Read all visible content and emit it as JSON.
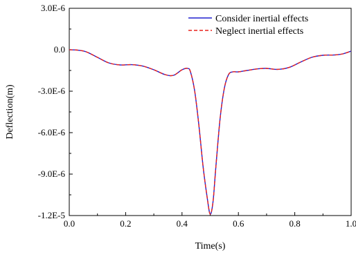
{
  "chart_data": {
    "type": "line",
    "xlabel": "Time(s)",
    "ylabel": "Deflection(m)",
    "xlim": [
      0.0,
      1.0
    ],
    "ylim": [
      -1.2e-05,
      3e-06
    ],
    "x_ticks": [
      "0.0",
      "0.2",
      "0.4",
      "0.6",
      "0.8",
      "1.0"
    ],
    "x_tick_values": [
      0.0,
      0.2,
      0.4,
      0.6,
      0.8,
      1.0
    ],
    "y_ticks": [
      "3.0E-6",
      "0.0",
      "-3.0E-6",
      "-6.0E-6",
      "-9.0E-6",
      "-1.2E-5"
    ],
    "y_tick_values": [
      3e-06,
      0.0,
      -3e-06,
      -6e-06,
      -9e-06,
      -1.2e-05
    ],
    "grid": false,
    "legend_position": "top-right",
    "x": [
      0.0,
      0.03,
      0.06,
      0.1,
      0.14,
      0.18,
      0.22,
      0.26,
      0.3,
      0.34,
      0.37,
      0.4,
      0.42,
      0.43,
      0.445,
      0.46,
      0.475,
      0.49,
      0.5,
      0.51,
      0.52,
      0.535,
      0.55,
      0.565,
      0.58,
      0.6,
      0.63,
      0.67,
      0.7,
      0.74,
      0.78,
      0.82,
      0.86,
      0.9,
      0.94,
      0.97,
      1.0
    ],
    "series": [
      {
        "name": "Consider inertial effects",
        "color": "#1f1fcf",
        "style": "solid",
        "y": [
          0.0,
          -3e-08,
          -1.5e-07,
          -5.5e-07,
          -9.5e-07,
          -1.1e-06,
          -1.08e-06,
          -1.18e-06,
          -1.45e-06,
          -1.8e-06,
          -1.85e-06,
          -1.45e-06,
          -1.35e-06,
          -1.6e-06,
          -3e-06,
          -5.5e-06,
          -8.5e-06,
          -1.08e-05,
          -1.19e-05,
          -1.1e-05,
          -8.5e-06,
          -5e-06,
          -2.8e-06,
          -1.8e-06,
          -1.6e-06,
          -1.6e-06,
          -1.5e-06,
          -1.38e-06,
          -1.35e-06,
          -1.42e-06,
          -1.28e-06,
          -9e-07,
          -5.5e-07,
          -4e-07,
          -3.8e-07,
          -3e-07,
          -1e-07
        ]
      },
      {
        "name": "Neglect inertial effects",
        "color": "#e8201c",
        "style": "dashed",
        "y": [
          0.0,
          -3e-08,
          -1.5e-07,
          -5.5e-07,
          -9.5e-07,
          -1.1e-06,
          -1.08e-06,
          -1.18e-06,
          -1.45e-06,
          -1.8e-06,
          -1.85e-06,
          -1.45e-06,
          -1.35e-06,
          -1.6e-06,
          -3e-06,
          -5.5e-06,
          -8.5e-06,
          -1.08e-05,
          -1.19e-05,
          -1.1e-05,
          -8.5e-06,
          -5e-06,
          -2.8e-06,
          -1.8e-06,
          -1.6e-06,
          -1.6e-06,
          -1.5e-06,
          -1.38e-06,
          -1.35e-06,
          -1.42e-06,
          -1.28e-06,
          -9e-07,
          -5.5e-07,
          -4e-07,
          -3.8e-07,
          -3e-07,
          -1e-07
        ]
      }
    ]
  }
}
